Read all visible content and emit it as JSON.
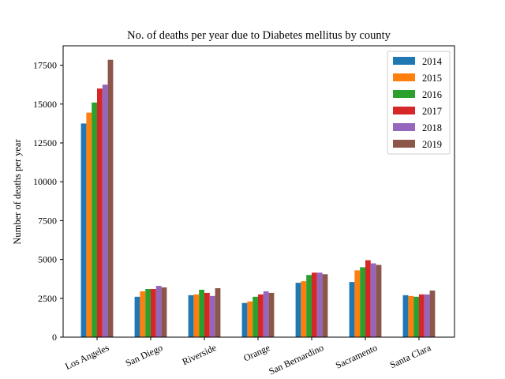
{
  "chart_data": {
    "type": "bar",
    "title": "No. of deaths per year due to Diabetes mellitus by county",
    "xlabel": "",
    "ylabel": "Number of deaths per year",
    "ylim": [
      0,
      18750
    ],
    "yticks": [
      0,
      2500,
      5000,
      7500,
      10000,
      12500,
      15000,
      17500
    ],
    "categories": [
      "Los Angeles",
      "San Diego",
      "Riverside",
      "Orange",
      "San Bernardino",
      "Sacramento",
      "Santa Clara"
    ],
    "legend_position": "top-right",
    "grid": false,
    "series": [
      {
        "name": "2014",
        "color": "#1f77b4",
        "values": [
          13750,
          2600,
          2700,
          2200,
          3500,
          3550,
          2700
        ]
      },
      {
        "name": "2015",
        "color": "#ff7f0e",
        "values": [
          14450,
          2950,
          2750,
          2300,
          3600,
          4300,
          2650
        ]
      },
      {
        "name": "2016",
        "color": "#2ca02c",
        "values": [
          15100,
          3100,
          3050,
          2600,
          4000,
          4500,
          2600
        ]
      },
      {
        "name": "2017",
        "color": "#d62728",
        "values": [
          16000,
          3100,
          2850,
          2750,
          4150,
          4950,
          2750
        ]
      },
      {
        "name": "2018",
        "color": "#9467bd",
        "values": [
          16250,
          3300,
          2650,
          2950,
          4150,
          4750,
          2750
        ]
      },
      {
        "name": "2019",
        "color": "#8c564b",
        "values": [
          17850,
          3200,
          3150,
          2850,
          4050,
          4650,
          3000
        ]
      }
    ]
  }
}
